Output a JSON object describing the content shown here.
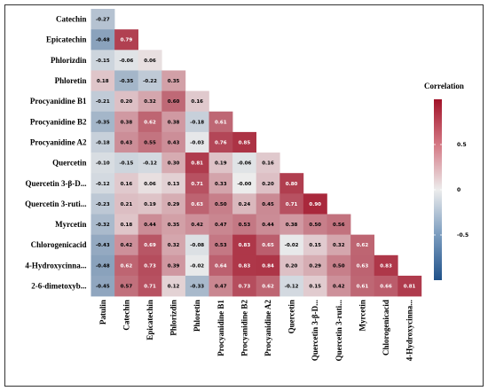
{
  "chart_data": {
    "type": "heatmap",
    "title": "",
    "rows": [
      "Catechin",
      "Epicatechin",
      "Phlorizdin",
      "Phloretin",
      "Procyanidine B1",
      "Procyanidine B2",
      "Procyanidine A2",
      "Quercetin",
      "Quercetin 3-β-D...",
      "Quercetin 3-ruti...",
      "Myrcetin",
      "Chlorogenicacid",
      "4-Hydroxycinna...",
      "2-6-dimetoxyb..."
    ],
    "columns": [
      "Patulin",
      "Catechin",
      "Epicatechin",
      "Phlorizdin",
      "Phloretin",
      "Procyanidine B1",
      "Procyanidine B2",
      "Procyanidine A2",
      "Quercetin",
      "Quercetin 3-β-D...",
      "Quercetin 3-ruti...",
      "Myrcetin",
      "Chlorogenicacid",
      "4-Hydroxycinna..."
    ],
    "values": [
      [
        -0.27
      ],
      [
        -0.48,
        0.79
      ],
      [
        -0.15,
        -0.06,
        0.06
      ],
      [
        0.18,
        -0.35,
        -0.22,
        0.35
      ],
      [
        -0.21,
        0.2,
        0.32,
        0.6,
        0.16
      ],
      [
        -0.35,
        0.38,
        0.62,
        0.38,
        -0.18,
        0.61
      ],
      [
        -0.18,
        0.43,
        0.55,
        0.43,
        -0.03,
        0.76,
        0.85
      ],
      [
        -0.1,
        -0.15,
        -0.12,
        0.3,
        0.81,
        0.19,
        -0.06,
        0.16
      ],
      [
        -0.12,
        0.16,
        0.06,
        0.13,
        0.71,
        0.33,
        -0.0,
        0.2,
        0.8
      ],
      [
        -0.23,
        0.21,
        0.19,
        0.29,
        0.63,
        0.5,
        0.24,
        0.45,
        0.71,
        0.9
      ],
      [
        -0.32,
        0.18,
        0.44,
        0.35,
        0.42,
        0.47,
        0.53,
        0.44,
        0.38,
        0.5,
        0.56
      ],
      [
        -0.43,
        0.42,
        0.69,
        0.32,
        -0.08,
        0.53,
        0.83,
        0.65,
        -0.02,
        0.15,
        0.32,
        0.62
      ],
      [
        -0.48,
        0.62,
        0.73,
        0.39,
        -0.02,
        0.64,
        0.83,
        0.84,
        0.2,
        0.29,
        0.5,
        0.63,
        0.83
      ],
      [
        -0.45,
        0.57,
        0.71,
        0.12,
        -0.33,
        0.47,
        0.73,
        0.62,
        -0.12,
        0.15,
        0.42,
        0.61,
        0.66,
        0.81
      ]
    ],
    "colorscale": {
      "low": "#1f5189",
      "mid": "#ececec",
      "high": "#a11228",
      "range": [
        -1,
        1
      ]
    },
    "legend": {
      "title": "Correlation",
      "ticks": [
        0.5,
        0,
        -0.5
      ],
      "tick_labels": [
        "0.5",
        "0",
        "-0.5"
      ],
      "placement": "right"
    }
  }
}
